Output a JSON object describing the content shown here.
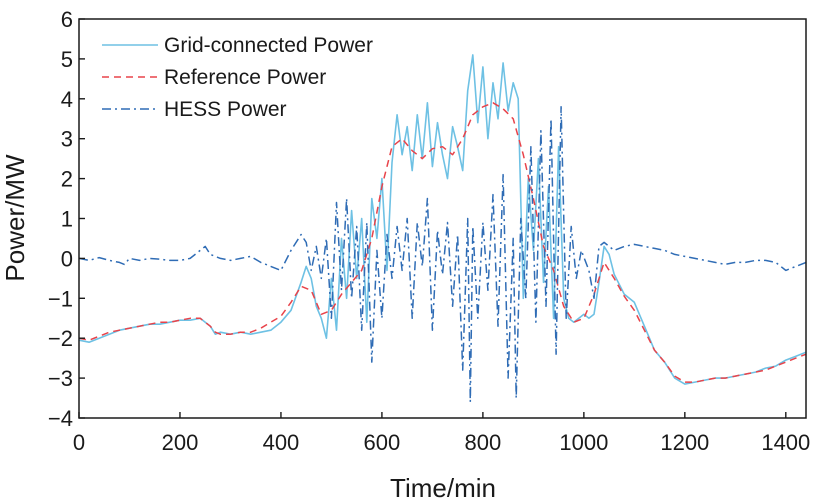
{
  "chart_data": {
    "type": "line",
    "title": "",
    "xlabel": "Time/min",
    "ylabel": "Power/MW",
    "xlim": [
      0,
      1440
    ],
    "ylim": [
      -4,
      6
    ],
    "xticks": [
      0,
      200,
      400,
      600,
      800,
      1000,
      1200,
      1400
    ],
    "yticks": [
      -4,
      -3,
      -2,
      -1,
      0,
      1,
      2,
      3,
      4,
      5,
      6
    ],
    "ytick_labels": [
      "−4",
      "−3",
      "−2",
      "−1",
      "0",
      "1",
      "2",
      "3",
      "4",
      "5",
      "6"
    ],
    "grid": false,
    "legend": "top-left",
    "series": [
      {
        "name": "Grid-connected Power",
        "color": "#6ec1e4",
        "style": "solid",
        "points": [
          [
            0,
            -2.05
          ],
          [
            20,
            -2.1
          ],
          [
            40,
            -2.0
          ],
          [
            60,
            -1.9
          ],
          [
            80,
            -1.8
          ],
          [
            100,
            -1.75
          ],
          [
            120,
            -1.7
          ],
          [
            140,
            -1.65
          ],
          [
            160,
            -1.65
          ],
          [
            180,
            -1.6
          ],
          [
            200,
            -1.55
          ],
          [
            220,
            -1.55
          ],
          [
            240,
            -1.5
          ],
          [
            260,
            -1.7
          ],
          [
            270,
            -1.9
          ],
          [
            280,
            -1.85
          ],
          [
            300,
            -1.9
          ],
          [
            320,
            -1.85
          ],
          [
            340,
            -1.9
          ],
          [
            360,
            -1.85
          ],
          [
            380,
            -1.8
          ],
          [
            400,
            -1.6
          ],
          [
            420,
            -1.3
          ],
          [
            440,
            -0.6
          ],
          [
            450,
            -0.2
          ],
          [
            460,
            -0.5
          ],
          [
            470,
            -1.2
          ],
          [
            480,
            -1.5
          ],
          [
            490,
            -2.0
          ],
          [
            500,
            -0.5
          ],
          [
            510,
            -1.8
          ],
          [
            520,
            0.5
          ],
          [
            530,
            -1.0
          ],
          [
            540,
            1.2
          ],
          [
            550,
            -0.5
          ],
          [
            560,
            1.0
          ],
          [
            570,
            -1.6
          ],
          [
            580,
            1.5
          ],
          [
            590,
            0.5
          ],
          [
            600,
            2.0
          ],
          [
            610,
            -0.3
          ],
          [
            620,
            2.4
          ],
          [
            630,
            3.6
          ],
          [
            640,
            2.6
          ],
          [
            650,
            3.3
          ],
          [
            660,
            2.2
          ],
          [
            670,
            3.6
          ],
          [
            680,
            2.5
          ],
          [
            690,
            3.9
          ],
          [
            700,
            2.3
          ],
          [
            710,
            3.4
          ],
          [
            720,
            2.6
          ],
          [
            730,
            2.0
          ],
          [
            740,
            3.3
          ],
          [
            750,
            2.8
          ],
          [
            760,
            2.2
          ],
          [
            770,
            4.2
          ],
          [
            780,
            5.1
          ],
          [
            790,
            3.4
          ],
          [
            800,
            4.8
          ],
          [
            810,
            3.0
          ],
          [
            820,
            4.4
          ],
          [
            830,
            3.5
          ],
          [
            840,
            4.9
          ],
          [
            850,
            3.7
          ],
          [
            860,
            4.4
          ],
          [
            870,
            4.0
          ],
          [
            880,
            -1.0
          ],
          [
            890,
            2.0
          ],
          [
            900,
            0.2
          ],
          [
            910,
            2.5
          ],
          [
            920,
            -0.6
          ],
          [
            930,
            1.8
          ],
          [
            940,
            -1.5
          ],
          [
            950,
            2.8
          ],
          [
            960,
            -1.0
          ],
          [
            970,
            -1.5
          ],
          [
            980,
            -1.6
          ],
          [
            990,
            -1.5
          ],
          [
            1000,
            -1.4
          ],
          [
            1010,
            -1.5
          ],
          [
            1020,
            -1.4
          ],
          [
            1030,
            -0.6
          ],
          [
            1040,
            0.3
          ],
          [
            1050,
            0.1
          ],
          [
            1060,
            -0.4
          ],
          [
            1080,
            -0.9
          ],
          [
            1100,
            -1.1
          ],
          [
            1120,
            -1.7
          ],
          [
            1140,
            -2.3
          ],
          [
            1160,
            -2.6
          ],
          [
            1180,
            -3.0
          ],
          [
            1200,
            -3.15
          ],
          [
            1220,
            -3.1
          ],
          [
            1240,
            -3.05
          ],
          [
            1260,
            -3.0
          ],
          [
            1280,
            -3.0
          ],
          [
            1300,
            -2.95
          ],
          [
            1320,
            -2.9
          ],
          [
            1340,
            -2.85
          ],
          [
            1360,
            -2.75
          ],
          [
            1380,
            -2.7
          ],
          [
            1400,
            -2.55
          ],
          [
            1420,
            -2.45
          ],
          [
            1440,
            -2.35
          ]
        ]
      },
      {
        "name": "Reference Power",
        "color": "#e8434a",
        "style": "dashed",
        "points": [
          [
            0,
            -2.0
          ],
          [
            20,
            -2.05
          ],
          [
            40,
            -1.95
          ],
          [
            60,
            -1.85
          ],
          [
            80,
            -1.8
          ],
          [
            100,
            -1.75
          ],
          [
            120,
            -1.7
          ],
          [
            140,
            -1.65
          ],
          [
            160,
            -1.6
          ],
          [
            180,
            -1.6
          ],
          [
            200,
            -1.55
          ],
          [
            220,
            -1.5
          ],
          [
            240,
            -1.5
          ],
          [
            260,
            -1.7
          ],
          [
            270,
            -1.85
          ],
          [
            280,
            -1.9
          ],
          [
            300,
            -1.9
          ],
          [
            320,
            -1.85
          ],
          [
            340,
            -1.85
          ],
          [
            360,
            -1.75
          ],
          [
            380,
            -1.6
          ],
          [
            400,
            -1.45
          ],
          [
            420,
            -1.1
          ],
          [
            440,
            -0.7
          ],
          [
            460,
            -0.8
          ],
          [
            480,
            -1.4
          ],
          [
            500,
            -1.3
          ],
          [
            520,
            -0.9
          ],
          [
            540,
            -0.6
          ],
          [
            560,
            -0.3
          ],
          [
            580,
            0.5
          ],
          [
            600,
            1.8
          ],
          [
            620,
            2.8
          ],
          [
            640,
            3.0
          ],
          [
            660,
            2.7
          ],
          [
            680,
            2.5
          ],
          [
            700,
            2.75
          ],
          [
            720,
            2.8
          ],
          [
            740,
            2.6
          ],
          [
            760,
            3.0
          ],
          [
            780,
            3.6
          ],
          [
            800,
            3.8
          ],
          [
            820,
            3.9
          ],
          [
            840,
            3.75
          ],
          [
            860,
            3.5
          ],
          [
            880,
            2.6
          ],
          [
            900,
            1.5
          ],
          [
            920,
            0.3
          ],
          [
            940,
            -0.3
          ],
          [
            960,
            -1.2
          ],
          [
            980,
            -1.6
          ],
          [
            1000,
            -1.5
          ],
          [
            1020,
            -0.9
          ],
          [
            1040,
            -0.1
          ],
          [
            1060,
            -0.5
          ],
          [
            1080,
            -0.95
          ],
          [
            1100,
            -1.3
          ],
          [
            1120,
            -1.8
          ],
          [
            1140,
            -2.3
          ],
          [
            1160,
            -2.6
          ],
          [
            1180,
            -2.95
          ],
          [
            1200,
            -3.1
          ],
          [
            1220,
            -3.1
          ],
          [
            1240,
            -3.05
          ],
          [
            1260,
            -3.0
          ],
          [
            1280,
            -3.0
          ],
          [
            1300,
            -2.95
          ],
          [
            1320,
            -2.9
          ],
          [
            1340,
            -2.85
          ],
          [
            1360,
            -2.8
          ],
          [
            1380,
            -2.7
          ],
          [
            1400,
            -2.6
          ],
          [
            1420,
            -2.5
          ],
          [
            1440,
            -2.4
          ]
        ]
      },
      {
        "name": "HESS Power",
        "color": "#2f6cb5",
        "style": "dashdot",
        "points": [
          [
            0,
            0.0
          ],
          [
            20,
            -0.05
          ],
          [
            40,
            0.02
          ],
          [
            60,
            -0.05
          ],
          [
            80,
            -0.1
          ],
          [
            90,
            -0.15
          ],
          [
            100,
            0.0
          ],
          [
            120,
            -0.05
          ],
          [
            140,
            0.0
          ],
          [
            160,
            -0.02
          ],
          [
            180,
            -0.05
          ],
          [
            200,
            -0.05
          ],
          [
            220,
            0.0
          ],
          [
            240,
            0.2
          ],
          [
            250,
            0.3
          ],
          [
            260,
            0.1
          ],
          [
            280,
            0.0
          ],
          [
            300,
            -0.05
          ],
          [
            320,
            0.0
          ],
          [
            340,
            0.05
          ],
          [
            360,
            -0.1
          ],
          [
            380,
            -0.2
          ],
          [
            400,
            -0.3
          ],
          [
            420,
            0.2
          ],
          [
            440,
            0.6
          ],
          [
            450,
            0.4
          ],
          [
            460,
            -0.3
          ],
          [
            470,
            0.3
          ],
          [
            480,
            -0.5
          ],
          [
            490,
            0.5
          ],
          [
            500,
            -1.5
          ],
          [
            510,
            1.4
          ],
          [
            520,
            -0.8
          ],
          [
            530,
            1.5
          ],
          [
            540,
            -1.0
          ],
          [
            550,
            0.8
          ],
          [
            560,
            -1.8
          ],
          [
            570,
            0.9
          ],
          [
            580,
            -2.6
          ],
          [
            590,
            0.2
          ],
          [
            600,
            -1.5
          ],
          [
            610,
            0.6
          ],
          [
            620,
            -0.5
          ],
          [
            630,
            0.8
          ],
          [
            640,
            -0.3
          ],
          [
            650,
            1.0
          ],
          [
            660,
            -1.5
          ],
          [
            670,
            0.9
          ],
          [
            680,
            -0.2
          ],
          [
            690,
            1.5
          ],
          [
            700,
            -1.8
          ],
          [
            710,
            0.7
          ],
          [
            720,
            -0.4
          ],
          [
            730,
            0.9
          ],
          [
            740,
            -1.2
          ],
          [
            750,
            0.6
          ],
          [
            760,
            -2.8
          ],
          [
            770,
            1.0
          ],
          [
            775,
            -3.6
          ],
          [
            780,
            0.8
          ],
          [
            790,
            -1.5
          ],
          [
            800,
            0.9
          ],
          [
            810,
            -0.8
          ],
          [
            820,
            1.6
          ],
          [
            830,
            -1.7
          ],
          [
            840,
            2.1
          ],
          [
            850,
            -3.0
          ],
          [
            860,
            0.5
          ],
          [
            866,
            -3.5
          ],
          [
            875,
            1.0
          ],
          [
            885,
            -1.0
          ],
          [
            895,
            2.8
          ],
          [
            905,
            -1.6
          ],
          [
            915,
            3.2
          ],
          [
            925,
            -1.2
          ],
          [
            935,
            3.5
          ],
          [
            945,
            -2.4
          ],
          [
            955,
            3.8
          ],
          [
            965,
            -1.5
          ],
          [
            975,
            0.8
          ],
          [
            985,
            -0.5
          ],
          [
            995,
            0.2
          ],
          [
            1010,
            -0.3
          ],
          [
            1020,
            -1.0
          ],
          [
            1030,
            0.3
          ],
          [
            1040,
            0.4
          ],
          [
            1060,
            0.2
          ],
          [
            1080,
            0.3
          ],
          [
            1100,
            0.35
          ],
          [
            1120,
            0.3
          ],
          [
            1140,
            0.25
          ],
          [
            1160,
            0.2
          ],
          [
            1180,
            0.1
          ],
          [
            1200,
            0.05
          ],
          [
            1220,
            0.0
          ],
          [
            1240,
            -0.05
          ],
          [
            1260,
            -0.1
          ],
          [
            1280,
            -0.15
          ],
          [
            1300,
            -0.1
          ],
          [
            1320,
            -0.1
          ],
          [
            1340,
            -0.05
          ],
          [
            1360,
            -0.05
          ],
          [
            1380,
            -0.1
          ],
          [
            1400,
            -0.3
          ],
          [
            1420,
            -0.2
          ],
          [
            1440,
            -0.1
          ]
        ]
      }
    ]
  }
}
